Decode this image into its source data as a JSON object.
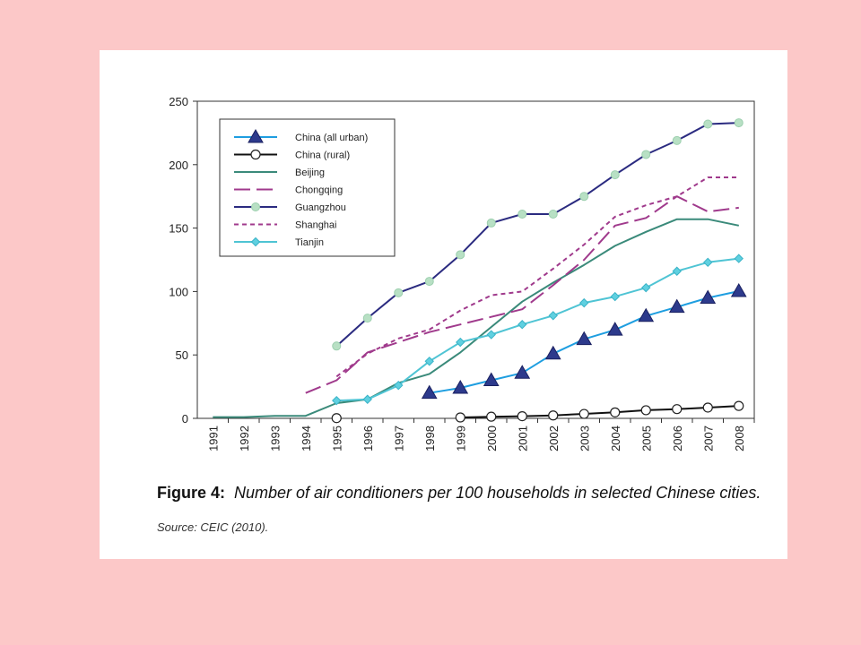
{
  "caption": {
    "label": "Figure 4:",
    "text": "Number of air conditioners per 100 households in selected Chinese cities."
  },
  "source": "Source: CEIC (2010).",
  "chart_data": {
    "type": "line",
    "title": "",
    "xlabel": "",
    "ylabel": "",
    "ylim": [
      0,
      250
    ],
    "yticks": [
      0,
      50,
      100,
      150,
      200,
      250
    ],
    "grid": false,
    "legend_position": "top-left",
    "x": [
      "1991",
      "1992",
      "1993",
      "1994",
      "1995",
      "1996",
      "1997",
      "1998",
      "1999",
      "2000",
      "2001",
      "2002",
      "2003",
      "2004",
      "2005",
      "2006",
      "2007",
      "2008"
    ],
    "series": [
      {
        "name": "China (all urban)",
        "color": "#1e9ee0",
        "dash": "solid",
        "marker": "triangle",
        "values": [
          null,
          null,
          null,
          null,
          null,
          null,
          null,
          20,
          24,
          30,
          35.8,
          51,
          62.4,
          69.8,
          80.7,
          87.8,
          95,
          100.3
        ]
      },
      {
        "name": "China (rural)",
        "color": "#111111",
        "dash": "solid",
        "marker": "circle",
        "values": [
          null,
          null,
          null,
          null,
          0.2,
          null,
          null,
          null,
          0.7,
          1.3,
          1.7,
          2.3,
          3.5,
          4.7,
          6.4,
          7.3,
          8.5,
          9.8
        ]
      },
      {
        "name": "Beijing",
        "color": "#3a8a7a",
        "dash": "solid",
        "marker": "none",
        "values": [
          1,
          1,
          2,
          2,
          12,
          15,
          28,
          35,
          52,
          72,
          92,
          107,
          121,
          136,
          147,
          157,
          157,
          152
        ]
      },
      {
        "name": "Chongqing",
        "color": "#a03a8c",
        "dash": "longdash",
        "marker": "none",
        "values": [
          null,
          null,
          null,
          20,
          30,
          52,
          60,
          68,
          74,
          80,
          86,
          105,
          125,
          152,
          158,
          175,
          163,
          166
        ]
      },
      {
        "name": "Guangzhou",
        "color": "#2b2b80",
        "dash": "solid",
        "marker": "circle-filled",
        "values": [
          null,
          null,
          null,
          null,
          57,
          79,
          99,
          108,
          129,
          154,
          161,
          161,
          175,
          192,
          208,
          219,
          232,
          233
        ]
      },
      {
        "name": "Shanghai",
        "color": "#a03a8c",
        "dash": "shortdash",
        "marker": "none",
        "values": [
          null,
          null,
          null,
          null,
          33,
          51,
          63,
          70,
          85,
          97,
          100,
          118,
          137,
          159,
          168,
          175,
          190,
          190
        ]
      },
      {
        "name": "Tianjin",
        "color": "#4fc4d4",
        "dash": "solid",
        "marker": "diamond",
        "values": [
          null,
          null,
          null,
          null,
          14,
          15,
          26,
          45,
          60,
          66,
          74,
          81,
          91,
          96,
          103,
          116,
          123,
          126
        ]
      }
    ]
  }
}
